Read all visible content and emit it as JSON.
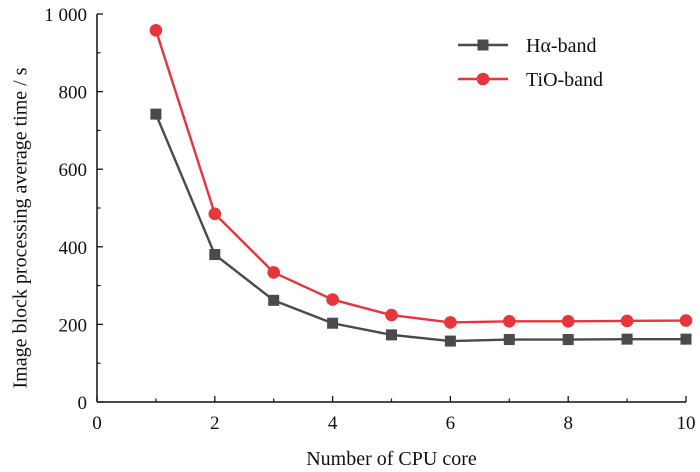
{
  "chart_data": {
    "type": "line",
    "title": "",
    "xlabel": "Number of CPU core",
    "ylabel": "Image block processing average time / s",
    "xlim": [
      0,
      10
    ],
    "ylim": [
      0,
      1000
    ],
    "xticks": [
      0,
      2,
      4,
      6,
      8,
      10
    ],
    "xtick_labels": [
      "0",
      "2",
      "4",
      "6",
      "8",
      "10"
    ],
    "yticks": [
      0,
      200,
      400,
      600,
      800,
      1000
    ],
    "ytick_labels": [
      "0",
      "200",
      "400",
      "600",
      "800",
      "1 000"
    ],
    "x": [
      1,
      2,
      3,
      4,
      5,
      6,
      7,
      8,
      9,
      10
    ],
    "series": [
      {
        "name": "Hα-band",
        "color": "#4a4a4a",
        "marker": "square",
        "values": [
          742,
          380,
          262,
          203,
          173,
          157,
          161,
          161,
          162,
          162
        ]
      },
      {
        "name": "TiO-band",
        "color": "#e8343a",
        "marker": "circle",
        "values": [
          958,
          485,
          334,
          264,
          224,
          205,
          208,
          208,
          209,
          210
        ]
      }
    ],
    "legend": "top-right",
    "grid": false
  }
}
